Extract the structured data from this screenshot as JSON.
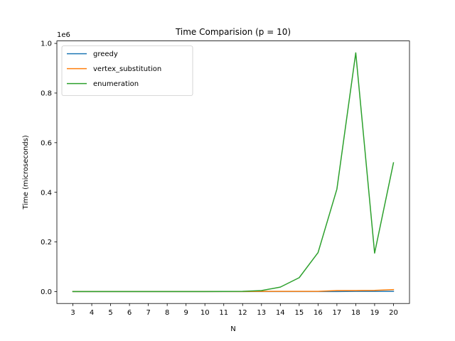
{
  "chart_data": {
    "type": "line",
    "title": "Time Comparision (p = 10)",
    "xlabel": "N",
    "ylabel": "Time (microseconds)",
    "y_offset_label": "1e6",
    "x": [
      3,
      4,
      5,
      6,
      7,
      8,
      9,
      10,
      11,
      12,
      13,
      14,
      15,
      16,
      17,
      18,
      19,
      20
    ],
    "xlim": [
      2.15,
      20.85
    ],
    "ylim": [
      -48000,
      1010000
    ],
    "yticks": [
      0,
      200000,
      400000,
      600000,
      800000,
      1000000
    ],
    "ytick_labels": [
      "0.0",
      "0.2",
      "0.4",
      "0.6",
      "0.8",
      "1.0"
    ],
    "grid": false,
    "legend_position": "top-left",
    "series": [
      {
        "name": "greedy",
        "color": "#1f77b4",
        "values": [
          0,
          0,
          0,
          0,
          0,
          0,
          0,
          0,
          0,
          0,
          0,
          0,
          0,
          0,
          0,
          1000,
          1000,
          1000
        ]
      },
      {
        "name": "vertex_substitution",
        "color": "#ff7f0e",
        "values": [
          0,
          0,
          0,
          0,
          0,
          0,
          0,
          0,
          0,
          0,
          1000,
          1000,
          1000,
          1000,
          4000,
          4000,
          5000,
          8000
        ]
      },
      {
        "name": "enumeration",
        "color": "#2ca02c",
        "values": [
          0,
          0,
          0,
          0,
          0,
          0,
          0,
          0,
          500,
          1000,
          4000,
          18000,
          56000,
          157000,
          413000,
          962000,
          155000,
          519000
        ]
      }
    ]
  }
}
